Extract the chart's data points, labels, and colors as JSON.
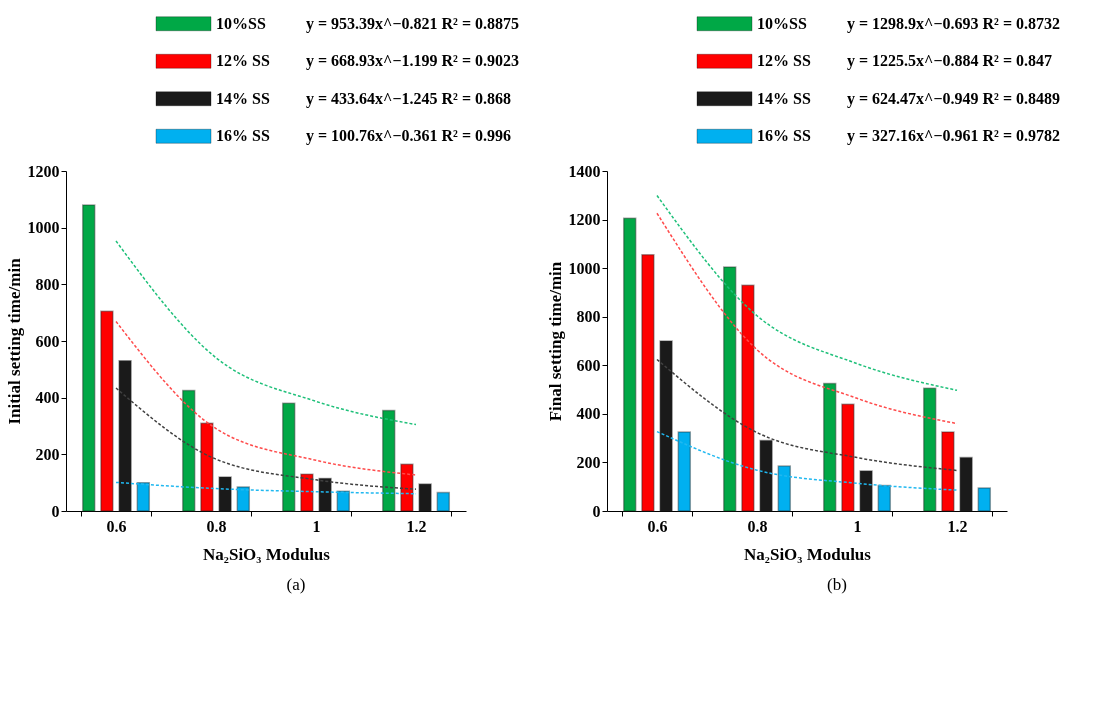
{
  "chart_data": [
    {
      "type": "bar",
      "categories": [
        "0.6",
        "0.8",
        "1",
        "1.2"
      ],
      "xlabel": "Na₂SiO₃  Modulus",
      "ylabel": "Initial setting time/min",
      "ylim": [
        0,
        1200
      ],
      "yticks": [
        0,
        200,
        400,
        600,
        800,
        1000,
        1200
      ],
      "grid": false,
      "legend": "top",
      "series": [
        {
          "name": "10%SS",
          "color": "#00a846",
          "values": [
            1080,
            425,
            380,
            355
          ]
        },
        {
          "name": "12% SS",
          "color": "#ff0000",
          "values": [
            705,
            310,
            130,
            165
          ]
        },
        {
          "name": "14% SS",
          "color": "#1a1a1a",
          "values": [
            530,
            120,
            115,
            95
          ]
        },
        {
          "name": "16% SS",
          "color": "#00b0f0",
          "values": [
            100,
            85,
            70,
            65
          ]
        },
        {
          "type": "line",
          "line_style": "dashed",
          "color": "#1fc07a",
          "values": [
            953,
            541,
            387,
            305
          ]
        },
        {
          "type": "line",
          "line_style": "dashed",
          "color": "#ff4b4b",
          "values": [
            669,
            291,
            179,
            127
          ]
        },
        {
          "type": "line",
          "line_style": "dashed",
          "color": "#404040",
          "values": [
            434,
            183,
            110,
            77
          ]
        },
        {
          "type": "line",
          "line_style": "dashed",
          "color": "#20b8f0",
          "values": [
            101,
            79,
            68,
            61
          ]
        }
      ],
      "annotations": [
        "y = 953.39x^−0.821 R² = 0.8875",
        "y = 668.93x^−1.199 R² = 0.9023",
        "y = 433.64x^−1.245 R² = 0.868",
        "y = 100.76x^−0.361 R² = 0.996",
        "(a)"
      ]
    },
    {
      "type": "bar",
      "categories": [
        "0.6",
        "0.8",
        "1",
        "1.2"
      ],
      "xlabel": "Na₂SiO₃  Modulus",
      "ylabel": "Final setting time/min",
      "ylim": [
        0,
        1400
      ],
      "yticks": [
        0,
        200,
        400,
        600,
        800,
        1000,
        1200,
        1400
      ],
      "grid": false,
      "legend": "top",
      "series": [
        {
          "name": "10%SS",
          "color": "#00a846",
          "values": [
            1205,
            1005,
            525,
            505
          ]
        },
        {
          "name": "12% SS",
          "color": "#ff0000",
          "values": [
            1055,
            930,
            440,
            325
          ]
        },
        {
          "name": "14% SS",
          "color": "#1a1a1a",
          "values": [
            700,
            290,
            165,
            220
          ]
        },
        {
          "name": "16% SS",
          "color": "#00b0f0",
          "values": [
            325,
            185,
            105,
            95
          ]
        },
        {
          "type": "line",
          "line_style": "dashed",
          "color": "#1fc07a",
          "values": [
            1299,
            804,
            607,
            497
          ]
        },
        {
          "type": "line",
          "line_style": "dashed",
          "color": "#ff4b4b",
          "values": [
            1226,
            664,
            464,
            360
          ]
        },
        {
          "type": "line",
          "line_style": "dashed",
          "color": "#404040",
          "values": [
            624,
            323,
            220,
            167
          ]
        },
        {
          "type": "line",
          "line_style": "dashed",
          "color": "#20b8f0",
          "values": [
            327,
            168,
            114,
            86
          ]
        }
      ],
      "annotations": [
        "y = 1298.9x^−0.693 R² = 0.8732",
        "y = 1225.5x^−0.884 R² = 0.847",
        "y = 624.47x^−0.949 R² = 0.8489",
        "y = 327.16x^−0.961 R² = 0.9782",
        "(b)"
      ]
    }
  ]
}
